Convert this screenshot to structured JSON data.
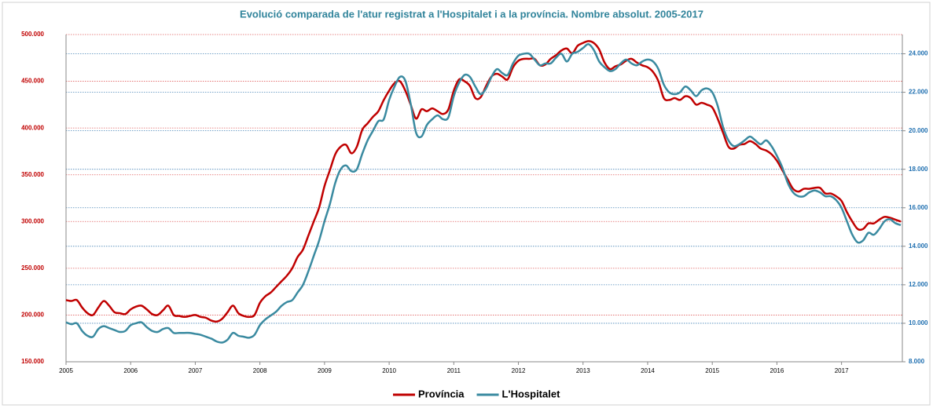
{
  "chart_data": {
    "type": "line",
    "title": "Evolució comparada de l'atur registrat a l'Hospitalet  i a la província. Nombre absolut. 2005-2017",
    "categories": [
      "2005",
      null,
      null,
      null,
      null,
      null,
      null,
      null,
      null,
      null,
      null,
      null,
      "2006",
      null,
      null,
      null,
      null,
      null,
      null,
      null,
      null,
      null,
      null,
      null,
      "2007",
      null,
      null,
      null,
      null,
      null,
      null,
      null,
      null,
      null,
      null,
      null,
      "2008",
      null,
      null,
      null,
      null,
      null,
      null,
      null,
      null,
      null,
      null,
      null,
      "2009",
      null,
      null,
      null,
      null,
      null,
      null,
      null,
      null,
      null,
      null,
      null,
      "2010",
      null,
      null,
      null,
      null,
      null,
      null,
      null,
      null,
      null,
      null,
      null,
      "2011",
      null,
      null,
      null,
      null,
      null,
      null,
      null,
      null,
      null,
      null,
      null,
      "2012",
      null,
      null,
      null,
      null,
      null,
      null,
      null,
      null,
      null,
      null,
      null,
      "2013",
      null,
      null,
      null,
      null,
      null,
      null,
      null,
      null,
      null,
      null,
      null,
      "2014",
      null,
      null,
      null,
      null,
      null,
      null,
      null,
      null,
      null,
      null,
      null,
      "2015",
      null,
      null,
      null,
      null,
      null,
      null,
      null,
      null,
      null,
      null,
      null,
      "2016",
      null,
      null,
      null,
      null,
      null,
      null,
      null,
      null,
      null,
      null,
      null,
      "2017",
      null,
      null,
      null,
      null,
      null,
      null,
      null,
      null,
      null,
      null,
      null
    ],
    "series": [
      {
        "name": "Província",
        "color": "#c00000",
        "values": [
          216000,
          215000,
          216000,
          208000,
          202000,
          200000,
          208000,
          215000,
          210000,
          203000,
          202000,
          201000,
          206000,
          209000,
          210000,
          206000,
          201000,
          200000,
          205000,
          210000,
          200000,
          199000,
          198000,
          199000,
          200000,
          198000,
          197000,
          194000,
          193000,
          196000,
          203000,
          210000,
          202000,
          199000,
          198000,
          200000,
          213000,
          220000,
          224000,
          230000,
          236000,
          242000,
          250000,
          262000,
          270000,
          285000,
          300000,
          315000,
          338000,
          355000,
          372000,
          380000,
          382000,
          373000,
          380000,
          398000,
          405000,
          412000,
          418000,
          430000,
          440000,
          448000,
          450000,
          440000,
          425000,
          410000,
          420000,
          418000,
          421000,
          418000,
          415000,
          420000,
          440000,
          452000,
          450000,
          445000,
          432000,
          433000,
          445000,
          455000,
          458000,
          455000,
          452000,
          465000,
          472000,
          474000,
          474000,
          474000,
          467000,
          468000,
          474000,
          478000,
          483000,
          485000,
          480000,
          488000,
          491000,
          493000,
          491000,
          484000,
          470000,
          463000,
          466000,
          468000,
          472000,
          474000,
          470000,
          467000,
          465000,
          460000,
          450000,
          432000,
          430000,
          432000,
          430000,
          434000,
          432000,
          425000,
          427000,
          425000,
          422000,
          410000,
          395000,
          380000,
          378000,
          382000,
          383000,
          386000,
          383000,
          378000,
          376000,
          372000,
          365000,
          355000,
          345000,
          335000,
          332000,
          335000,
          335000,
          336000,
          336000,
          330000,
          330000,
          327000,
          322000,
          310000,
          300000,
          292000,
          292000,
          298000,
          298000,
          302000,
          305000,
          304000,
          302000,
          300000
        ]
      },
      {
        "name": "L'Hospitalet",
        "color": "#3a8aa0",
        "axis": "y2",
        "values": [
          10050,
          9950,
          10000,
          9600,
          9350,
          9300,
          9700,
          9850,
          9750,
          9650,
          9550,
          9600,
          9900,
          10000,
          10050,
          9800,
          9600,
          9550,
          9700,
          9750,
          9500,
          9500,
          9500,
          9500,
          9450,
          9400,
          9300,
          9200,
          9050,
          9000,
          9150,
          9500,
          9350,
          9300,
          9250,
          9400,
          9900,
          10200,
          10400,
          10600,
          10900,
          11100,
          11200,
          11600,
          12000,
          12700,
          13500,
          14300,
          15300,
          16200,
          17300,
          18000,
          18200,
          17900,
          18000,
          18800,
          19500,
          20000,
          20500,
          20600,
          21600,
          22300,
          22800,
          22600,
          21400,
          19900,
          19700,
          20300,
          20600,
          20800,
          20600,
          20700,
          21800,
          22500,
          22900,
          22800,
          22300,
          21900,
          22200,
          22800,
          23200,
          23000,
          22900,
          23500,
          23900,
          24000,
          24000,
          23700,
          23400,
          23500,
          23500,
          23800,
          24000,
          23600,
          24000,
          24100,
          24300,
          24500,
          24200,
          23600,
          23300,
          23100,
          23200,
          23500,
          23700,
          23500,
          23400,
          23600,
          23700,
          23600,
          23200,
          22400,
          22000,
          21900,
          22000,
          22300,
          22100,
          21800,
          22100,
          22200,
          22000,
          21300,
          20200,
          19500,
          19200,
          19300,
          19500,
          19700,
          19500,
          19300,
          19500,
          19200,
          18700,
          18100,
          17300,
          16800,
          16600,
          16600,
          16800,
          16900,
          16800,
          16600,
          16600,
          16400,
          16000,
          15300,
          14600,
          14200,
          14300,
          14700,
          14600,
          14900,
          15300,
          15400,
          15200,
          15100
        ]
      }
    ],
    "ylim": [
      150000,
      500000
    ],
    "yticks": [
      {
        "value": 150000,
        "label": "150.000"
      },
      {
        "value": 200000,
        "label": "200.000"
      },
      {
        "value": 250000,
        "label": "250.000"
      },
      {
        "value": 300000,
        "label": "300.000"
      },
      {
        "value": 350000,
        "label": "350.000"
      },
      {
        "value": 400000,
        "label": "400.000"
      },
      {
        "value": 450000,
        "label": "450.000"
      },
      {
        "value": 500000,
        "label": "500.000"
      }
    ],
    "y2lim": [
      8000,
      25000
    ],
    "y2ticks": [
      {
        "value": 8000,
        "label": "8.000"
      },
      {
        "value": 10000,
        "label": "10.000"
      },
      {
        "value": 12000,
        "label": "12.000"
      },
      {
        "value": 14000,
        "label": "14.000"
      },
      {
        "value": 16000,
        "label": "16.000"
      },
      {
        "value": 18000,
        "label": "18.000"
      },
      {
        "value": 20000,
        "label": "20.000"
      },
      {
        "value": 22000,
        "label": "22.000"
      },
      {
        "value": 24000,
        "label": "24.000"
      }
    ],
    "grid": true,
    "legend": "bottom"
  }
}
